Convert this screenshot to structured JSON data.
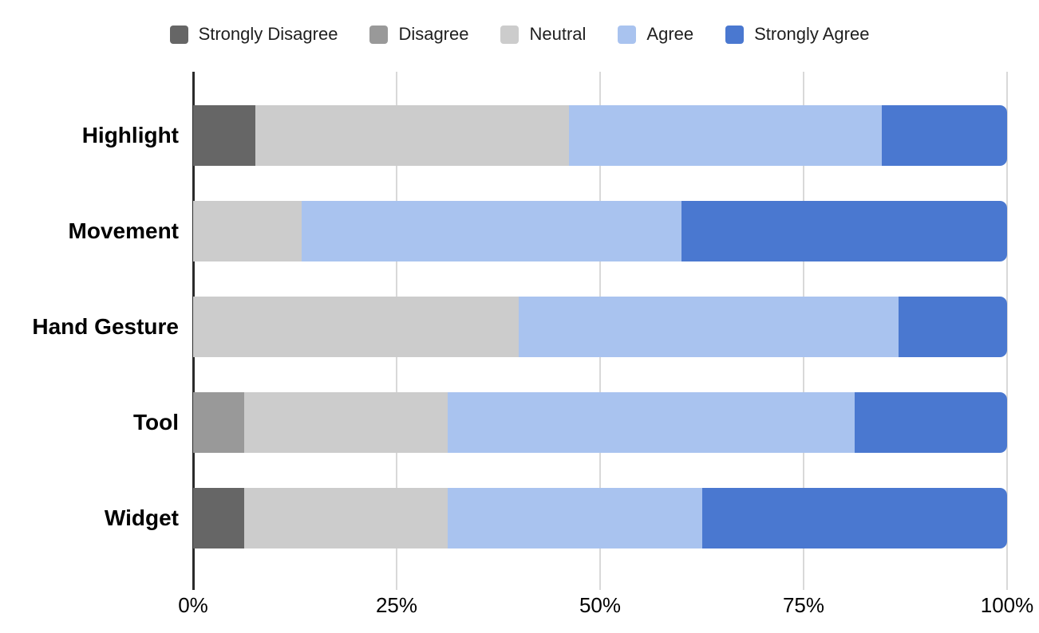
{
  "colors": {
    "strongly_disagree": "#666666",
    "disagree": "#999999",
    "neutral": "#cccccc",
    "agree": "#a9c3ef",
    "strongly_agree": "#4a78d0",
    "gridline": "#d9d9d9",
    "axis_line": "#2b2b2b",
    "text": "#000000"
  },
  "chart_data": {
    "type": "bar",
    "orientation": "horizontal",
    "stacked": true,
    "stacked_mode": "percent",
    "title": "",
    "xlabel": "",
    "ylabel": "",
    "xlim": [
      0,
      100
    ],
    "grid": true,
    "legend_position": "top",
    "categories": [
      "Highlight",
      "Movement",
      "Hand Gesture",
      "Tool",
      "Widget"
    ],
    "series": [
      {
        "name": "Strongly Disagree",
        "color_key": "strongly_disagree",
        "values": [
          7.69,
          0,
          0,
          0,
          6.25
        ]
      },
      {
        "name": "Disagree",
        "color_key": "disagree",
        "values": [
          0,
          0,
          0,
          6.25,
          0
        ]
      },
      {
        "name": "Neutral",
        "color_key": "neutral",
        "values": [
          38.46,
          13.33,
          40,
          25,
          25
        ]
      },
      {
        "name": "Agree",
        "color_key": "agree",
        "values": [
          38.46,
          46.67,
          46.67,
          50,
          31.25
        ]
      },
      {
        "name": "Strongly Agree",
        "color_key": "strongly_agree",
        "values": [
          15.39,
          40,
          13.33,
          18.75,
          37.5
        ]
      }
    ],
    "x_ticks": [
      "0%",
      "25%",
      "50%",
      "75%",
      "100%"
    ],
    "x_tick_positions": [
      0,
      25,
      50,
      75,
      100
    ]
  }
}
